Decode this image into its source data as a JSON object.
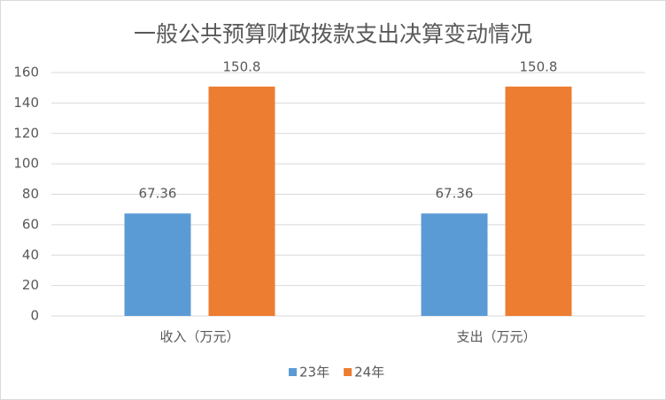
{
  "chart_data": {
    "type": "bar",
    "title": "一般公共预算财政拨款支出决算变动情况",
    "categories": [
      "收入（万元）",
      "支出（万元）"
    ],
    "series": [
      {
        "name": "23年",
        "color": "#5b9bd5",
        "values": [
          67.36,
          67.36
        ]
      },
      {
        "name": "24年",
        "color": "#ed7d31",
        "values": [
          150.8,
          150.8
        ]
      }
    ],
    "ylim": [
      0,
      160
    ],
    "yticks": [
      0,
      20,
      40,
      60,
      80,
      100,
      120,
      140,
      160
    ],
    "grid": true,
    "legend": "bottom"
  }
}
